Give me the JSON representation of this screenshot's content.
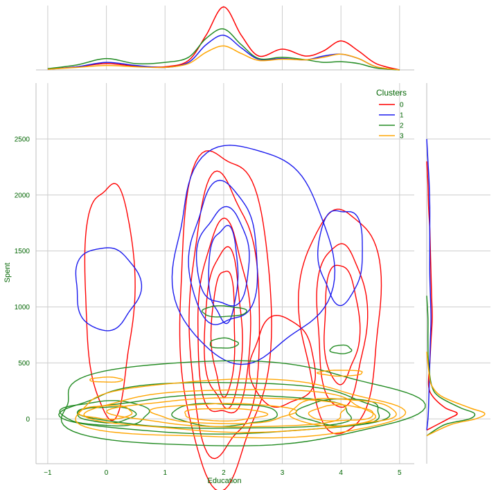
{
  "chart_data": {
    "type": "jointplot-kde",
    "title": "",
    "xlabel": "Education",
    "ylabel": "Spent",
    "xlim": [
      -1.2,
      5.25
    ],
    "ylim": [
      -400,
      3000
    ],
    "x_ticks": [
      "−1",
      "0",
      "1",
      "2",
      "3",
      "4",
      "5"
    ],
    "y_ticks": [
      "0",
      "500",
      "1000",
      "1500",
      "2000",
      "2500"
    ],
    "grid": true,
    "legend": {
      "title": "Clusters",
      "position": "top-right",
      "entries": [
        "0",
        "1",
        "2",
        "3"
      ]
    },
    "series": [
      {
        "name": "0",
        "color": "#ff0000",
        "contours": [
          {
            "cx": 0.05,
            "cy": 1100,
            "rx": 0.42,
            "ry": 1040
          },
          {
            "cx": 2.0,
            "cy": 950,
            "rx": 0.78,
            "ry": 1480
          },
          {
            "cx": 2.0,
            "cy": 900,
            "rx": 0.6,
            "ry": 1230
          },
          {
            "cx": 2.0,
            "cy": 850,
            "rx": 0.45,
            "ry": 860
          },
          {
            "cx": 2.0,
            "cy": 800,
            "rx": 0.32,
            "ry": 700
          },
          {
            "cx": 2.0,
            "cy": 780,
            "rx": 0.2,
            "ry": 560
          },
          {
            "cx": 4.0,
            "cy": 900,
            "rx": 0.68,
            "ry": 1000
          },
          {
            "cx": 4.0,
            "cy": 850,
            "rx": 0.42,
            "ry": 730
          },
          {
            "cx": 4.0,
            "cy": 850,
            "rx": 0.3,
            "ry": 530
          },
          {
            "cx": 3.0,
            "cy": 500,
            "rx": 0.55,
            "ry": 400
          }
        ]
      },
      {
        "name": "1",
        "color": "#1a1aee",
        "contours": [
          {
            "cx": 0.0,
            "cy": 1170,
            "rx": 0.55,
            "ry": 370
          },
          {
            "cx": 2.45,
            "cy": 1470,
            "rx": 1.35,
            "ry": 960
          },
          {
            "cx": 2.0,
            "cy": 1450,
            "rx": 0.58,
            "ry": 630
          },
          {
            "cx": 2.0,
            "cy": 1430,
            "rx": 0.45,
            "ry": 430
          },
          {
            "cx": 2.0,
            "cy": 1300,
            "rx": 0.25,
            "ry": 420
          },
          {
            "cx": 4.0,
            "cy": 1470,
            "rx": 0.38,
            "ry": 420
          }
        ]
      },
      {
        "name": "2",
        "color": "#228b22",
        "contours": [
          {
            "cx": 2.1,
            "cy": 130,
            "rx": 3.05,
            "ry": 380
          },
          {
            "cx": 2.0,
            "cy": 90,
            "rx": 2.7,
            "ry": 230
          },
          {
            "cx": 2.0,
            "cy": 60,
            "rx": 2.3,
            "ry": 150
          },
          {
            "cx": 0.0,
            "cy": 50,
            "rx": 0.75,
            "ry": 110
          },
          {
            "cx": 0.0,
            "cy": 40,
            "rx": 0.5,
            "ry": 70
          },
          {
            "cx": 2.0,
            "cy": 40,
            "rx": 0.9,
            "ry": 100
          },
          {
            "cx": 2.0,
            "cy": 960,
            "rx": 0.38,
            "ry": 48
          },
          {
            "cx": 2.0,
            "cy": 675,
            "rx": 0.24,
            "ry": 45
          },
          {
            "cx": 4.0,
            "cy": 620,
            "rx": 0.18,
            "ry": 38
          },
          {
            "cx": 4.0,
            "cy": 60,
            "rx": 0.7,
            "ry": 120
          }
        ]
      },
      {
        "name": "3",
        "color": "#ffa500",
        "contours": [
          {
            "cx": 2.2,
            "cy": 80,
            "rx": 2.75,
            "ry": 260
          },
          {
            "cx": 2.2,
            "cy": 70,
            "rx": 2.4,
            "ry": 190
          },
          {
            "cx": 2.2,
            "cy": 60,
            "rx": 2.0,
            "ry": 130
          },
          {
            "cx": 2.0,
            "cy": 50,
            "rx": 1.2,
            "ry": 90
          },
          {
            "cx": 2.0,
            "cy": 40,
            "rx": 0.7,
            "ry": 55
          },
          {
            "cx": 4.0,
            "cy": 60,
            "rx": 0.9,
            "ry": 120
          },
          {
            "cx": 4.0,
            "cy": 50,
            "rx": 0.55,
            "ry": 70
          },
          {
            "cx": 0.0,
            "cy": 350,
            "rx": 0.28,
            "ry": 22
          },
          {
            "cx": 0.0,
            "cy": 60,
            "rx": 0.45,
            "ry": 60
          },
          {
            "cx": 4.0,
            "cy": 410,
            "rx": 0.38,
            "ry": 26
          }
        ]
      }
    ],
    "marginal_x": [
      {
        "name": "0",
        "color": "#ff0000",
        "x": [
          -1.0,
          -0.5,
          0,
          0.5,
          1,
          1.4,
          1.7,
          2,
          2.3,
          2.6,
          3,
          3.4,
          3.7,
          4,
          4.3,
          4.6,
          5.0
        ],
        "y": [
          0.01,
          0.05,
          0.1,
          0.06,
          0.05,
          0.15,
          0.55,
          1.0,
          0.55,
          0.22,
          0.33,
          0.22,
          0.3,
          0.46,
          0.3,
          0.1,
          0.0
        ]
      },
      {
        "name": "1",
        "color": "#1a1aee",
        "x": [
          -1.0,
          -0.5,
          0,
          0.5,
          1,
          1.4,
          1.7,
          2,
          2.3,
          2.6,
          3,
          3.4,
          3.7,
          4,
          4.3,
          4.6,
          5.0
        ],
        "y": [
          0.01,
          0.05,
          0.12,
          0.07,
          0.04,
          0.12,
          0.4,
          0.55,
          0.35,
          0.17,
          0.18,
          0.16,
          0.22,
          0.25,
          0.18,
          0.05,
          0.0
        ]
      },
      {
        "name": "2",
        "color": "#228b22",
        "x": [
          -1.0,
          -0.5,
          0,
          0.5,
          1,
          1.4,
          1.7,
          2,
          2.3,
          2.6,
          3,
          3.4,
          3.7,
          4,
          4.3,
          4.6,
          5.0
        ],
        "y": [
          0.02,
          0.08,
          0.18,
          0.1,
          0.12,
          0.2,
          0.5,
          0.65,
          0.4,
          0.18,
          0.2,
          0.16,
          0.12,
          0.13,
          0.1,
          0.03,
          0.0
        ]
      },
      {
        "name": "3",
        "color": "#ffa500",
        "x": [
          -1.0,
          -0.5,
          0,
          0.5,
          1,
          1.4,
          1.7,
          2,
          2.3,
          2.6,
          3,
          3.4,
          3.7,
          4,
          4.3,
          4.6,
          5.0
        ],
        "y": [
          0.01,
          0.04,
          0.07,
          0.05,
          0.04,
          0.1,
          0.28,
          0.38,
          0.26,
          0.15,
          0.17,
          0.16,
          0.2,
          0.25,
          0.18,
          0.05,
          0.0
        ]
      }
    ],
    "marginal_y": [
      {
        "name": "0",
        "color": "#ff0000",
        "y": [
          -100,
          0,
          50,
          100,
          200,
          300,
          500,
          700,
          900,
          1100,
          1300,
          1500,
          1700,
          1900,
          2100,
          2300
        ],
        "d": [
          0.0,
          0.35,
          0.5,
          0.3,
          0.1,
          0.03,
          0.05,
          0.07,
          0.09,
          0.08,
          0.07,
          0.06,
          0.05,
          0.03,
          0.02,
          0.0
        ]
      },
      {
        "name": "1",
        "color": "#1a1aee",
        "y": [
          -100,
          0,
          100,
          300,
          500,
          700,
          900,
          1100,
          1300,
          1500,
          1700,
          1900,
          2100,
          2300,
          2500
        ],
        "d": [
          0.0,
          0.02,
          0.03,
          0.04,
          0.05,
          0.06,
          0.07,
          0.06,
          0.05,
          0.05,
          0.05,
          0.05,
          0.04,
          0.02,
          0.0
        ]
      },
      {
        "name": "2",
        "color": "#228b22",
        "y": [
          -150,
          -50,
          0,
          50,
          100,
          200,
          300,
          500,
          700,
          900,
          1100
        ],
        "d": [
          0.0,
          0.3,
          0.7,
          0.78,
          0.55,
          0.2,
          0.08,
          0.03,
          0.02,
          0.02,
          0.0
        ]
      },
      {
        "name": "3",
        "color": "#ffa500",
        "y": [
          -150,
          -50,
          0,
          50,
          100,
          200,
          300,
          400,
          600
        ],
        "d": [
          0.0,
          0.4,
          0.8,
          0.95,
          0.7,
          0.25,
          0.08,
          0.04,
          0.0
        ]
      }
    ]
  }
}
